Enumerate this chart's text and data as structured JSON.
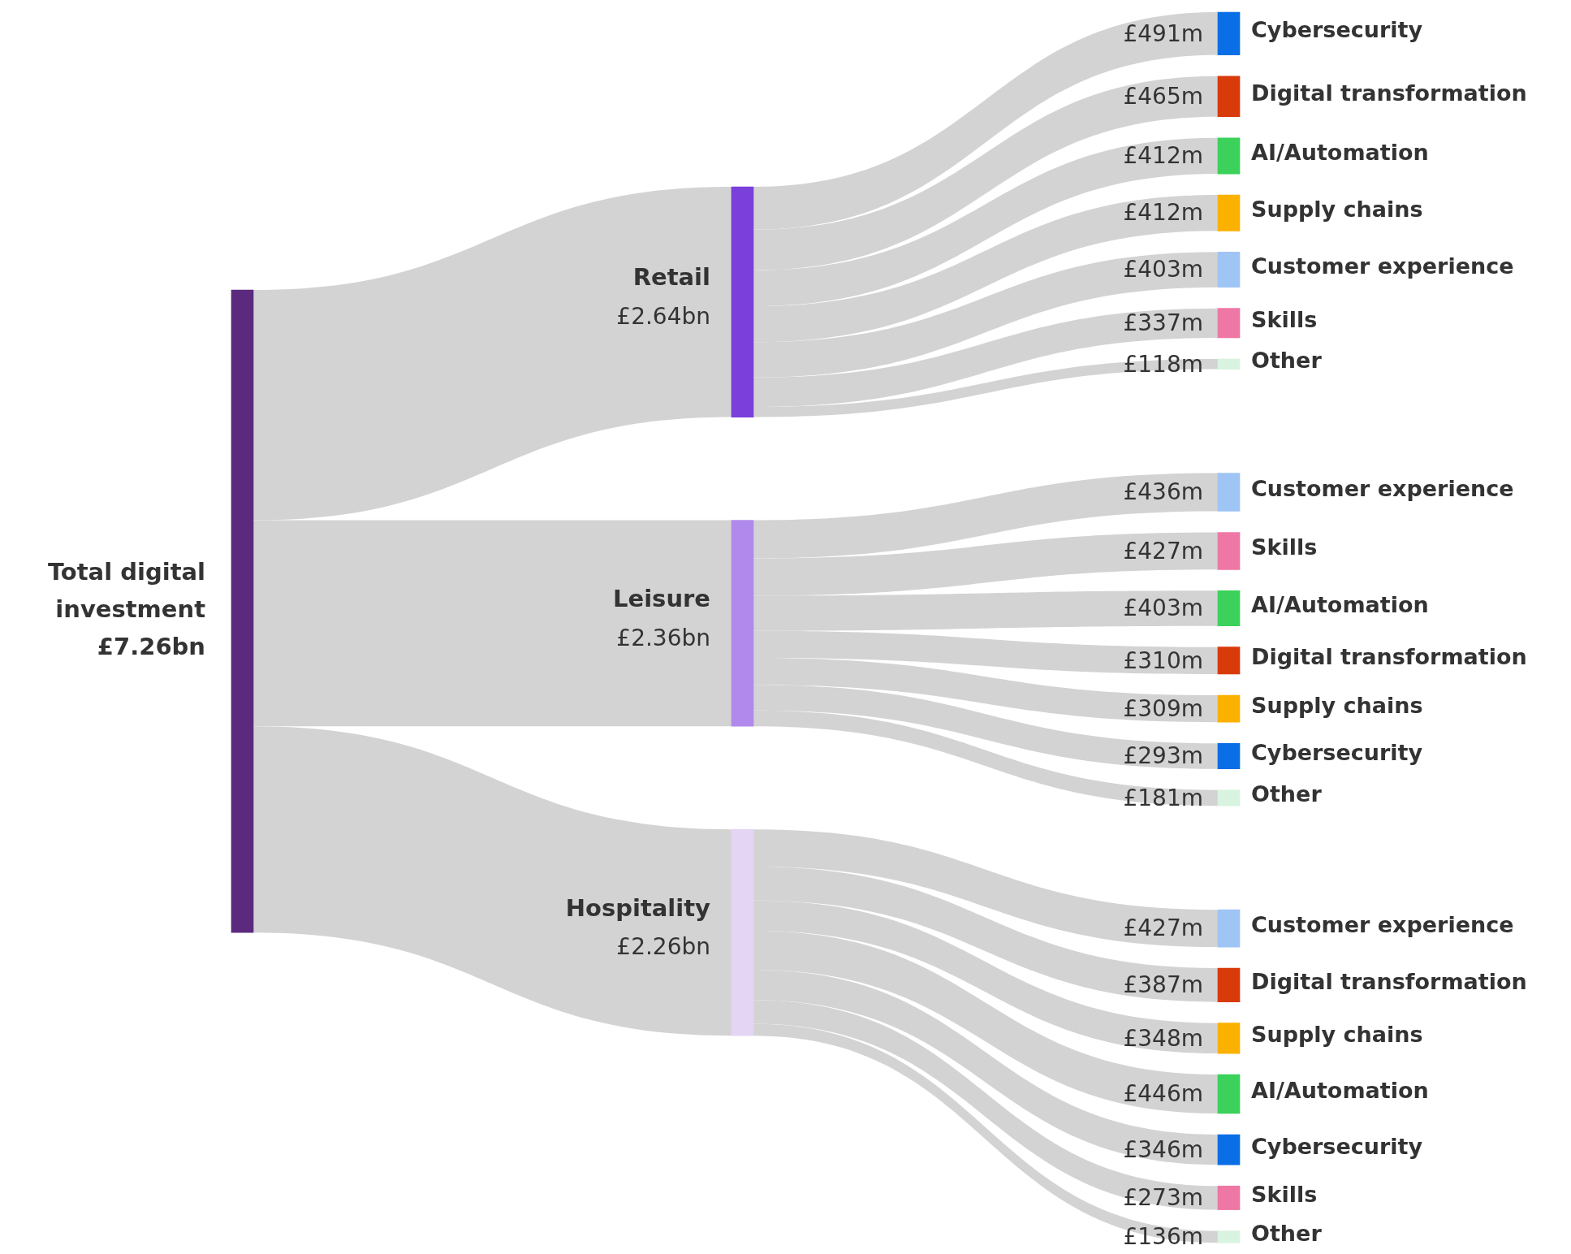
{
  "chart_data": {
    "type": "other",
    "color": "#5b2a7e",
    "annotations": [
      "Total digital investment",
      "£7.26bn"
    ],
    "totals": [
      "£2.64bn",
      "£2.36bn",
      "£2.26bn"
    ],
    "categories": [
      "Cybersecurity",
      "Digital transformation",
      "AI/Automation",
      "Supply chains",
      "Customer experience",
      "Skills",
      "Other",
      "Customer experience",
      "Skills",
      "AI/Automation",
      "Digital transformation",
      "Supply chains",
      "Cybersecurity",
      "Other",
      "Customer experience",
      "Digital transformation",
      "Supply chains",
      "AI/Automation",
      "Cybersecurity",
      "Skills",
      "Other"
    ],
    "colors": [
      "#0a6ee6",
      "#d93a0a",
      "#3bd15a",
      "#fbb100",
      "#9fc5f5",
      "#ee77a5",
      "#d8f3df",
      "#9fc5f5",
      "#ee77a5",
      "#3bd15a",
      "#d93a0a",
      "#fbb100",
      "#0a6ee6",
      "#d8f3df",
      "#9fc5f5",
      "#d93a0a",
      "#fbb100",
      "#3bd15a",
      "#0a6ee6",
      "#ee77a5",
      "#d8f3df"
    ],
    "series": [
      {
        "name": "Retail",
        "color": "#d3d3d3",
        "values": [
          491,
          465,
          412,
          412,
          403,
          337,
          118,
          null,
          null,
          null,
          null,
          null,
          null,
          null,
          null,
          null,
          null,
          null,
          null,
          null,
          null
        ],
        "value_labels": [
          "£491m",
          "£465m",
          "£412m",
          "£412m",
          "£403m",
          "£337m",
          "£118m",
          null,
          null,
          null,
          null,
          null,
          null,
          null,
          null,
          null,
          null,
          null,
          null,
          null,
          null
        ]
      },
      {
        "name": "Leisure",
        "color": "#d3d3d3",
        "values": [
          null,
          null,
          null,
          null,
          null,
          null,
          null,
          436,
          427,
          403,
          310,
          309,
          293,
          181,
          null,
          null,
          null,
          null,
          null,
          null,
          null
        ],
        "value_labels": [
          null,
          null,
          null,
          null,
          null,
          null,
          null,
          "£436m",
          "£427m",
          "£403m",
          "£310m",
          "£309m",
          "£293m",
          "£181m",
          null,
          null,
          null,
          null,
          null,
          null,
          null
        ]
      },
      {
        "name": "Hospitality",
        "color": "#d3d3d3",
        "values": [
          null,
          null,
          null,
          null,
          null,
          null,
          null,
          null,
          null,
          null,
          null,
          null,
          null,
          null,
          427,
          387,
          348,
          446,
          346,
          273,
          136
        ],
        "value_labels": [
          null,
          null,
          null,
          null,
          null,
          null,
          null,
          null,
          null,
          null,
          null,
          null,
          null,
          null,
          "£427m",
          "£387m",
          "£348m",
          "£446m",
          "£346m",
          "£273m",
          "£136m"
        ]
      }
    ]
  }
}
